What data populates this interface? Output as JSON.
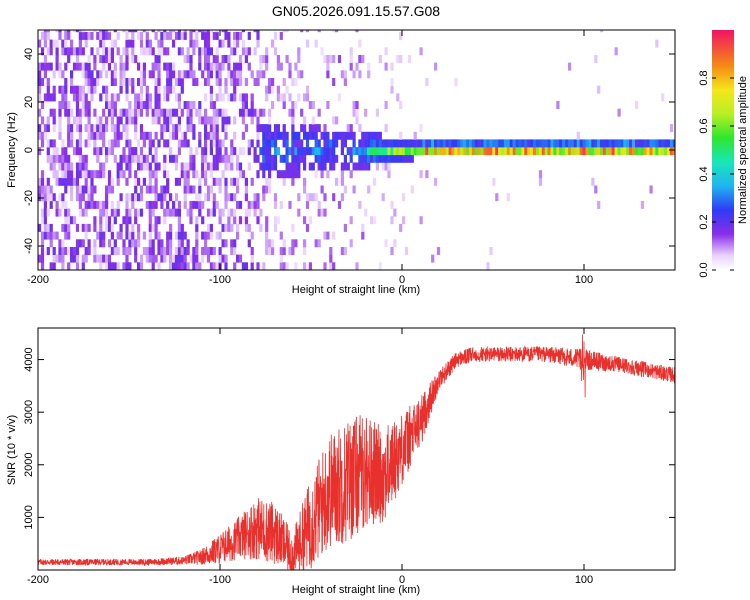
{
  "title": "GN05.2026.091.15.57.G08",
  "colors": {
    "snr_line": "#e8302c",
    "axis": "#000000",
    "background": "#ffffff"
  },
  "chart_data": [
    {
      "type": "heatmap",
      "name": "spectrogram",
      "title": "GN05.2026.091.15.57.G08",
      "xlabel": "Height of straight line (km)",
      "ylabel": "Frequency (Hz)",
      "xlim": [
        -200,
        150
      ],
      "ylim": [
        -50,
        50
      ],
      "xticks": [
        -200,
        -100,
        0,
        100
      ],
      "yticks": [
        -40,
        -20,
        0,
        20,
        40
      ],
      "colorbar": {
        "label": "Normalized spectral amplitude",
        "range": [
          0,
          1
        ],
        "ticks": [
          0,
          0.2,
          0.4,
          0.6,
          0.8
        ],
        "tick_labels": [
          "0.0",
          "0.2",
          "0.4",
          "0.6",
          "0.8"
        ],
        "stops": [
          {
            "v": 0.0,
            "c": "#ffffff"
          },
          {
            "v": 0.06,
            "c": "#ead2ff"
          },
          {
            "v": 0.15,
            "c": "#8a2ee8"
          },
          {
            "v": 0.25,
            "c": "#2f3bf5"
          },
          {
            "v": 0.35,
            "c": "#1fb5f0"
          },
          {
            "v": 0.45,
            "c": "#19e6b8"
          },
          {
            "v": 0.55,
            "c": "#2ee62e"
          },
          {
            "v": 0.65,
            "c": "#b8ef24"
          },
          {
            "v": 0.75,
            "c": "#f5e61a"
          },
          {
            "v": 0.85,
            "c": "#f58a14"
          },
          {
            "v": 1.0,
            "c": "#f01464"
          }
        ]
      },
      "description_profile": {
        "noise_region": {
          "x": [
            -200,
            -80
          ],
          "intensity": [
            0.06,
            0.18
          ]
        },
        "transition_region": {
          "x": [
            -80,
            10
          ],
          "core_y_halfwidth": [
            10,
            2
          ]
        },
        "tone_line": {
          "x": [
            10,
            150
          ],
          "y_center": 0,
          "y_halfwidth": 2,
          "intensity": [
            0.5,
            0.95
          ]
        }
      }
    },
    {
      "type": "line",
      "name": "snr",
      "xlabel": "Height of straight line (km)",
      "ylabel": "SNR (10 * v/v)",
      "xlim": [
        -200,
        150
      ],
      "ylim": [
        0,
        4600
      ],
      "xticks": [
        -200,
        -100,
        0,
        100
      ],
      "yticks": [
        1000,
        2000,
        3000,
        4000
      ],
      "series": [
        {
          "name": "SNR",
          "x": [
            -200,
            -180,
            -160,
            -140,
            -120,
            -110,
            -100,
            -90,
            -80,
            -70,
            -60,
            -50,
            -40,
            -30,
            -20,
            -10,
            0,
            10,
            20,
            30,
            40,
            60,
            80,
            100,
            120,
            150
          ],
          "mean": [
            150,
            150,
            150,
            150,
            180,
            250,
            400,
            600,
            800,
            700,
            300,
            900,
            1500,
            1700,
            1900,
            1800,
            2300,
            2800,
            3600,
            4000,
            4100,
            4100,
            4100,
            4000,
            3900,
            3700
          ],
          "noise": [
            60,
            60,
            60,
            60,
            80,
            150,
            300,
            400,
            600,
            600,
            400,
            900,
            1100,
            1200,
            1100,
            900,
            700,
            500,
            200,
            150,
            150,
            150,
            150,
            200,
            150,
            150
          ]
        }
      ]
    }
  ]
}
